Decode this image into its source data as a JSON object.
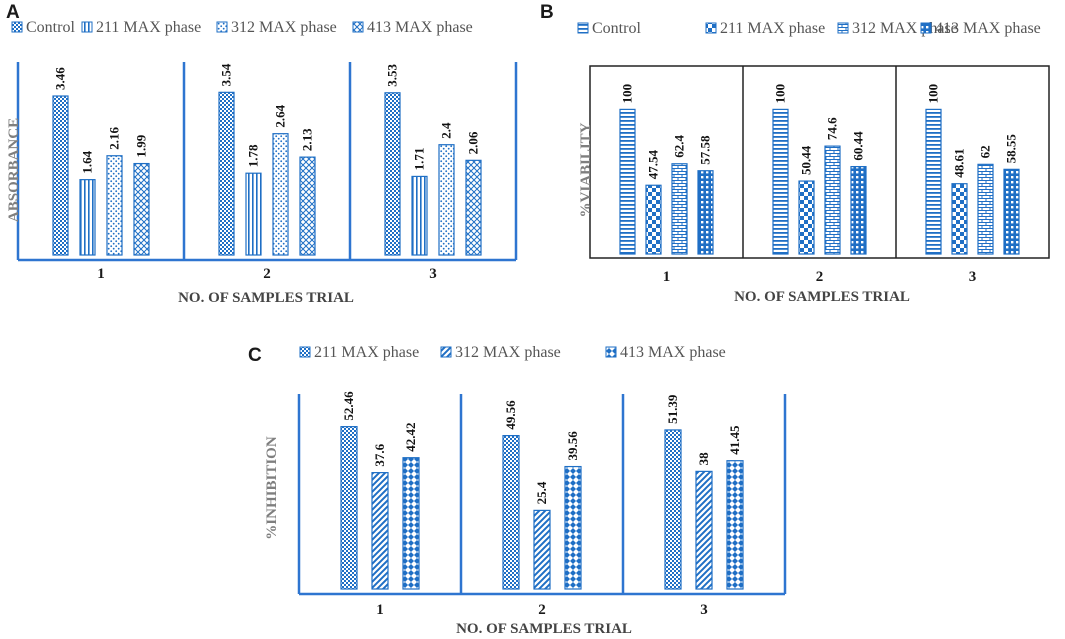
{
  "colors": {
    "blue": "#1f6fc5",
    "axis": "#2e75d0"
  },
  "chart_data": [
    {
      "panel": "A",
      "type": "bar",
      "categories": [
        "1",
        "2",
        "3"
      ],
      "series": [
        {
          "name": "Control",
          "values": [
            3.46,
            3.54,
            3.53
          ],
          "labels": [
            "3.46",
            "3.54",
            "3.53"
          ],
          "pattern": "dense-dots"
        },
        {
          "name": "211 MAX phase",
          "values": [
            1.64,
            1.78,
            1.71
          ],
          "labels": [
            "1.64",
            "1.78",
            "1.71"
          ],
          "pattern": "vlines"
        },
        {
          "name": "312 MAX phase",
          "values": [
            2.16,
            2.64,
            2.4
          ],
          "labels": [
            "2.16",
            "2.64",
            "2.4"
          ],
          "pattern": "dots"
        },
        {
          "name": "413 MAX phase",
          "values": [
            1.99,
            2.13,
            2.06
          ],
          "labels": [
            "1.99",
            "2.13",
            "2.06"
          ],
          "pattern": "cross"
        }
      ],
      "xlabel": "NO. OF SAMPLES TRIAL",
      "ylabel": "ABSORBANCE",
      "ylim": [
        0,
        4.2
      ]
    },
    {
      "panel": "B",
      "type": "bar",
      "categories": [
        "1",
        "2",
        "3"
      ],
      "series": [
        {
          "name": "Control",
          "values": [
            100,
            100,
            100
          ],
          "labels": [
            "100",
            "100",
            "100"
          ],
          "pattern": "hlines"
        },
        {
          "name": "211 MAX phase",
          "values": [
            47.54,
            50.44,
            48.61
          ],
          "labels": [
            "47.54",
            "50.44",
            "48.61"
          ],
          "pattern": "checker"
        },
        {
          "name": "312 MAX phase",
          "values": [
            62.4,
            74.6,
            62
          ],
          "labels": [
            "62.4",
            "74.6",
            "62"
          ],
          "pattern": "brick"
        },
        {
          "name": "413 MAX phase",
          "values": [
            57.58,
            60.44,
            58.55
          ],
          "labels": [
            "57.58",
            "60.44",
            "58.55"
          ],
          "pattern": "grid"
        }
      ],
      "xlabel": "NO. OF SAMPLES TRIAL",
      "ylabel": "%VIABILITY",
      "ylim": [
        0,
        130
      ]
    },
    {
      "panel": "C",
      "type": "bar",
      "categories": [
        "1",
        "2",
        "3"
      ],
      "series": [
        {
          "name": "211 MAX phase",
          "values": [
            52.46,
            49.56,
            51.39
          ],
          "labels": [
            "52.46",
            "49.56",
            "51.39"
          ],
          "pattern": "dense-dots"
        },
        {
          "name": "312 MAX phase",
          "values": [
            37.6,
            25.4,
            38
          ],
          "labels": [
            "37.6",
            "25.4",
            "38"
          ],
          "pattern": "diag"
        },
        {
          "name": "413 MAX phase",
          "values": [
            42.42,
            39.56,
            41.45
          ],
          "labels": [
            "42.42",
            "39.56",
            "41.45"
          ],
          "pattern": "diamond"
        }
      ],
      "xlabel": "NO. OF SAMPLES TRIAL",
      "ylabel": "%INHIBITION",
      "ylim": [
        0,
        63
      ]
    }
  ]
}
